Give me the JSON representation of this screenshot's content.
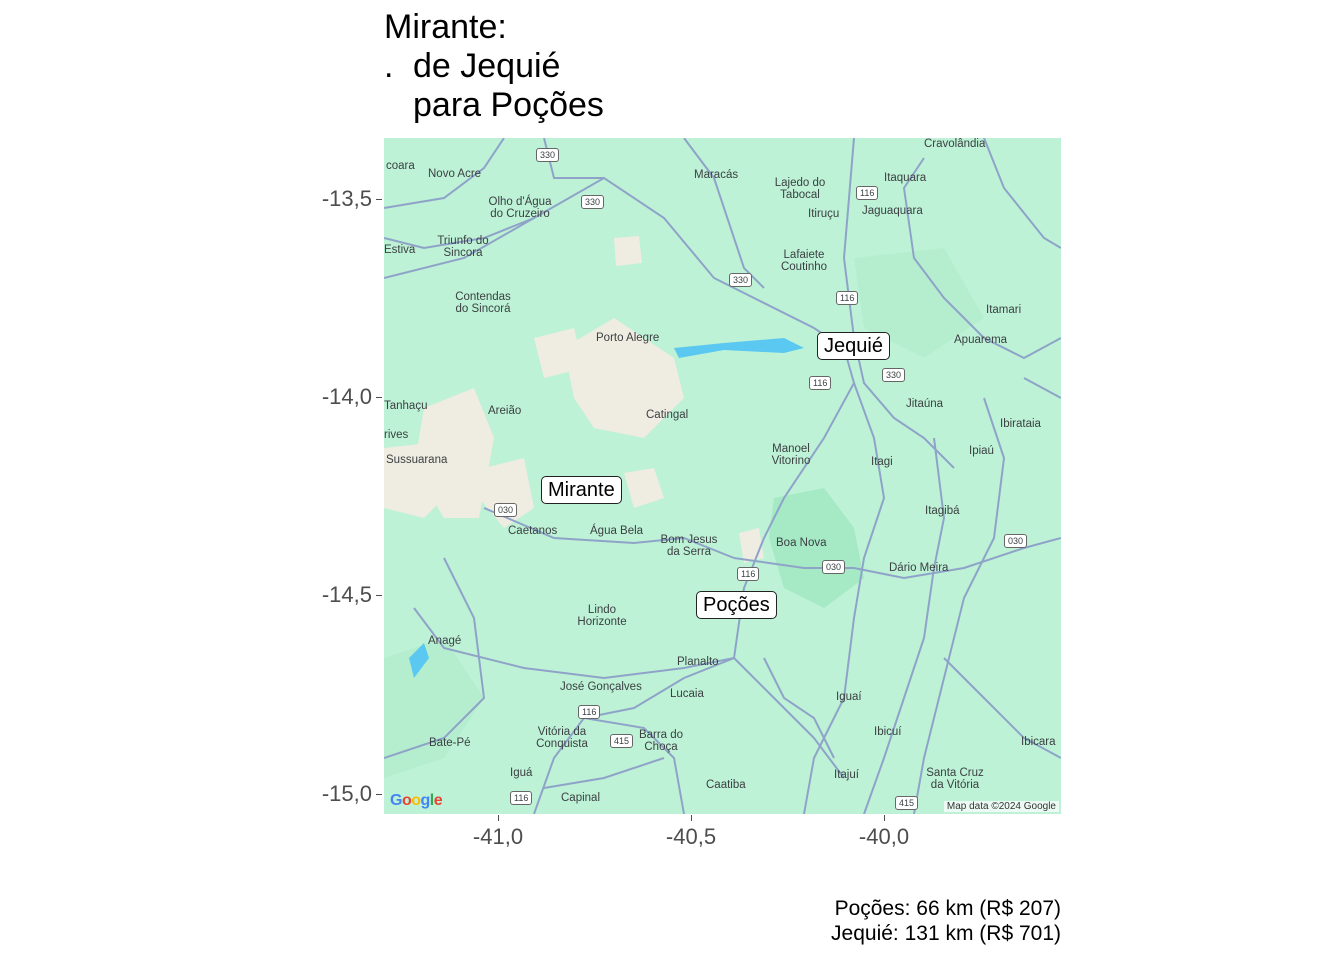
{
  "title": {
    "line1": "Mirante:",
    "line2_prefix": ".",
    "line2": "de Jequié",
    "line3": "para Poções"
  },
  "map": {
    "attribution": "Map data ©2024 Google",
    "logo": "Google",
    "y_axis": {
      "ticks": [
        "-13,5",
        "-14,0",
        "-14,5",
        "-15,0"
      ],
      "values": [
        -13.5,
        -14.0,
        -14.5,
        -15.0
      ]
    },
    "x_axis": {
      "ticks": [
        "-41,0",
        "-40,5",
        "-40,0"
      ],
      "values": [
        -41.0,
        -40.5,
        -40.0
      ]
    },
    "markers": [
      {
        "name": "Jequié",
        "lon": -40.08,
        "lat": -13.88
      },
      {
        "name": "Mirante",
        "lon": -40.8,
        "lat": -14.24
      },
      {
        "name": "Poções",
        "lon": -40.36,
        "lat": -14.53
      }
    ],
    "places": [
      "Cravolândia",
      "Novo Acre",
      "Maracás",
      "Lajedo do Tabocal",
      "Itaquara",
      "Itiruçu",
      "Jaguaquara",
      "Olho d'Água do Cruzeiro",
      "Triunfo do Sincora",
      "Lafaiete Coutinho",
      "Contendas do Sincorá",
      "Itamari",
      "Porto Alegre",
      "Apuarema",
      "Areião",
      "Catingal",
      "Jitaúna",
      "Ibirataia",
      "Tanhaçu",
      "Manoel Vitorino",
      "Ipiaú",
      "Sussuarana",
      "Itagi",
      "Itagibá",
      "Caetanos",
      "Água Bela",
      "Bom Jesus da Serra",
      "Boa Nova",
      "Dário Meira",
      "Lindo Horizonte",
      "Anagé",
      "Planalto",
      "José Gonçalves",
      "Lucaia",
      "Iguaí",
      "Vitória da Conquista",
      "Barra do Choça",
      "Bate-Pé",
      "Ibicuí",
      "Ibicara",
      "Iguá",
      "Caatiba",
      "Itajuí",
      "Santa Cruz da Vitória",
      "Capinal"
    ],
    "shields": [
      "330",
      "330",
      "116",
      "330",
      "116",
      "116",
      "330",
      "030",
      "030",
      "116",
      "030",
      "116",
      "415",
      "116",
      "415"
    ]
  },
  "caption": {
    "line1": "Poções: 66 km (R$ 207)",
    "line2": "Jequié: 131 km (R$ 701)"
  },
  "colors": {
    "land": "#bdf2d6",
    "dark_green": "#9fe6bf",
    "sand": "#f0ece0",
    "road": "#8fa3c9",
    "water": "#5ac8f0"
  }
}
